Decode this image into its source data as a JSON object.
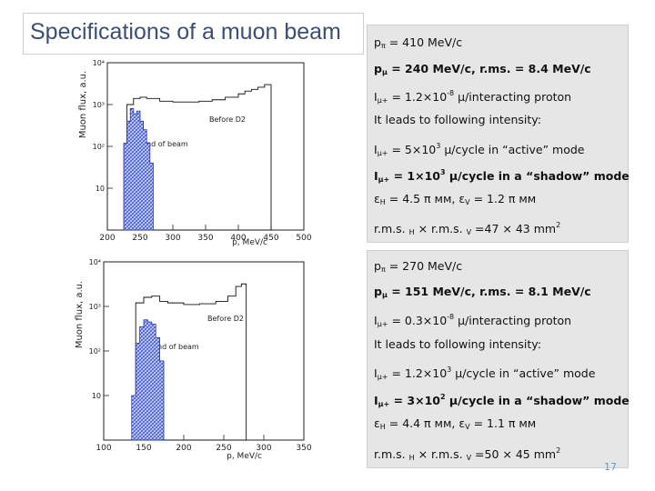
{
  "slide": {
    "title": "Specifications of a muon beam",
    "page_number": "17"
  },
  "panel1": {
    "rows": [
      {
        "a": "p",
        "b": "π",
        "c": " = 410 MeV/c"
      },
      {
        "a": "p",
        "b": "μ",
        "c": " = 240 MeV/c,   r.ms. = 8.4 MeV/c"
      },
      {
        "a": "I",
        "b": "μ+",
        "c": " = 1.2×10",
        "d": "-8",
        "e": "  μ/interacting proton"
      },
      {
        "a": "It leads to following intensity:"
      },
      {
        "a": "I",
        "b": "μ+",
        "c": " = 5×10",
        "d": "3",
        "e": "  μ/cycle in “active” mode"
      },
      {
        "a": "I",
        "b": "μ+",
        "c": " = 1×10",
        "d": "3",
        "e": "  μ/cycle in a “shadow” mode"
      },
      {
        "a": "ε",
        "b": "H",
        "c": " = 4.5 π мм,   ε",
        "d": "V",
        "e": " = 1.2 π мм"
      },
      {
        "a": "r.m.s. ",
        "b": "H",
        "c": "  × r.m.s. ",
        "d": "V",
        "e": " =47 × 43 mm",
        "f": "2"
      }
    ]
  },
  "panel2": {
    "rows": [
      {
        "a": "p",
        "b": "π",
        "c": " = 270 MeV/c"
      },
      {
        "a": "p",
        "b": "μ",
        "c": " = 151 MeV/c,   r.ms. = 8.1 MeV/c"
      },
      {
        "a": "I",
        "b": "μ+",
        "c": " = 0.3×10",
        "d": "-8",
        "e": "  μ/interacting proton"
      },
      {
        "a": "It leads to following intensity:"
      },
      {
        "a": "I",
        "b": "μ+",
        "c": " = 1.2×10",
        "d": "3",
        "e": "  μ/cycle in “active” mode"
      },
      {
        "a": "I",
        "b": "μ+",
        "c": " = 3×10",
        "d": "2",
        "e": "  μ/cycle in a “shadow” mode"
      },
      {
        "a": "ε",
        "b": "H",
        "c": " = 4.4 π мм,   ε",
        "d": "V",
        "e": " = 1.1 π мм"
      },
      {
        "a": "r.m.s. ",
        "b": "H",
        "c": "  × r.m.s. ",
        "d": "V",
        "e": " =50 × 45 mm",
        "f": "2"
      }
    ]
  },
  "plot1": {
    "ylabel": "Muon flux, a.u.",
    "xlabel": "p, MeV/c",
    "xticks": [
      "200",
      "250",
      "300",
      "350",
      "400",
      "450",
      "500"
    ],
    "yticks": [
      "10⁴",
      "10³",
      "10²",
      "10"
    ],
    "label_before": "Before D2",
    "label_end": "End of beam"
  },
  "plot2": {
    "ylabel": "Muon flux, a.u.",
    "xlabel": "p, MeV/c",
    "xticks": [
      "100",
      "150",
      "200",
      "250",
      "300",
      "350"
    ],
    "yticks": [
      "10⁴",
      "10³",
      "10²",
      "10"
    ],
    "label_before": "Before D2",
    "label_end": "End of beam"
  },
  "chart_data": [
    {
      "type": "area",
      "xlabel": "p, MeV/c",
      "ylabel": "Muon flux, a.u.",
      "xlim": [
        200,
        500
      ],
      "ylim": [
        1,
        10000
      ],
      "yscale": "log",
      "series": [
        {
          "name": "Before D2",
          "x": [
            230,
            240,
            250,
            260,
            280,
            300,
            320,
            340,
            360,
            380,
            400,
            410,
            420,
            430,
            440,
            450
          ],
          "values": [
            1000,
            1400,
            1500,
            1400,
            1200,
            1150,
            1150,
            1200,
            1300,
            1500,
            1800,
            2100,
            2300,
            2600,
            3000,
            1
          ]
        },
        {
          "name": "End of beam",
          "x": [
            225,
            230,
            235,
            240,
            245,
            250,
            255,
            260,
            265,
            270
          ],
          "values": [
            120,
            400,
            800,
            600,
            700,
            400,
            250,
            120,
            40,
            8
          ]
        }
      ]
    },
    {
      "type": "area",
      "xlabel": "p, MeV/c",
      "ylabel": "Muon flux, a.u.",
      "xlim": [
        100,
        350
      ],
      "ylim": [
        1,
        10000
      ],
      "yscale": "log",
      "series": [
        {
          "name": "Before D2",
          "x": [
            140,
            150,
            160,
            170,
            180,
            200,
            220,
            240,
            255,
            265,
            272,
            278
          ],
          "values": [
            1200,
            1600,
            1700,
            1300,
            1200,
            1100,
            1150,
            1300,
            1700,
            2800,
            3200,
            1
          ]
        },
        {
          "name": "End of beam",
          "x": [
            135,
            140,
            145,
            150,
            155,
            160,
            165,
            170,
            175
          ],
          "values": [
            10,
            150,
            350,
            500,
            450,
            400,
            200,
            60,
            10
          ]
        }
      ]
    }
  ]
}
